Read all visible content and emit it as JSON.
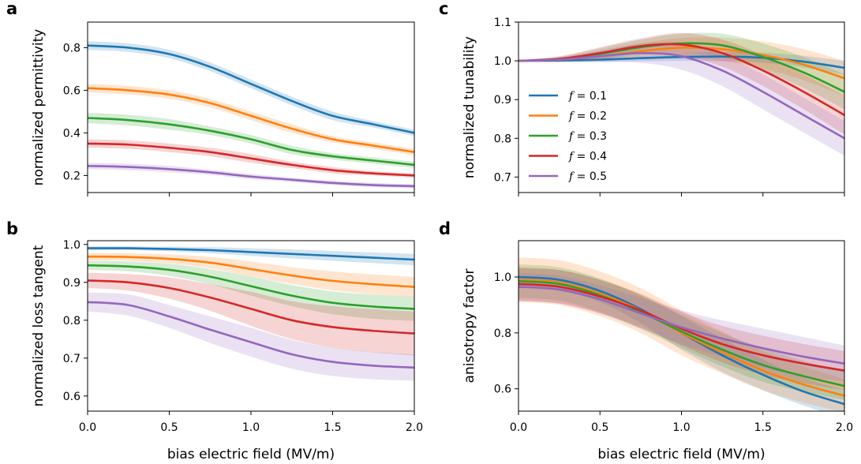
{
  "chart_data": [
    {
      "panel": "a",
      "type": "line",
      "xlabel": "",
      "ylabel": "normalized permittivity",
      "xlim": [
        0,
        2
      ],
      "ylim": [
        0.12,
        0.92
      ],
      "yticks": [
        0.2,
        0.4,
        0.6,
        0.8
      ],
      "ytick_labels": [
        "0.2",
        "0.4",
        "0.6",
        "0.8"
      ],
      "xticks": [
        0,
        0.5,
        1,
        1.5,
        2
      ],
      "xtick_labels": [],
      "grid": false,
      "x": [
        0.0,
        0.25,
        0.5,
        0.75,
        1.0,
        1.25,
        1.5,
        1.75,
        2.0
      ],
      "series": [
        {
          "color": "#1f77b4",
          "values": [
            0.81,
            0.8,
            0.77,
            0.71,
            0.63,
            0.55,
            0.48,
            0.44,
            0.4
          ],
          "band": [
            0.02,
            0.02,
            0.02,
            0.02,
            0.02,
            0.02,
            0.02,
            0.015,
            0.015
          ]
        },
        {
          "color": "#ff7f0e",
          "values": [
            0.61,
            0.6,
            0.58,
            0.54,
            0.48,
            0.42,
            0.37,
            0.34,
            0.31
          ],
          "band": [
            0.02,
            0.02,
            0.02,
            0.02,
            0.02,
            0.02,
            0.015,
            0.015,
            0.015
          ]
        },
        {
          "color": "#2ca02c",
          "values": [
            0.47,
            0.46,
            0.44,
            0.41,
            0.37,
            0.32,
            0.29,
            0.27,
            0.25
          ],
          "band": [
            0.025,
            0.025,
            0.025,
            0.02,
            0.02,
            0.02,
            0.015,
            0.015,
            0.015
          ]
        },
        {
          "color": "#d62728",
          "values": [
            0.35,
            0.345,
            0.33,
            0.31,
            0.28,
            0.25,
            0.225,
            0.21,
            0.2
          ],
          "band": [
            0.02,
            0.02,
            0.02,
            0.02,
            0.02,
            0.015,
            0.015,
            0.01,
            0.01
          ]
        },
        {
          "color": "#9467bd",
          "values": [
            0.245,
            0.24,
            0.23,
            0.215,
            0.195,
            0.18,
            0.165,
            0.155,
            0.15
          ],
          "band": [
            0.015,
            0.015,
            0.015,
            0.012,
            0.012,
            0.01,
            0.01,
            0.01,
            0.01
          ]
        }
      ]
    },
    {
      "panel": "b",
      "type": "line",
      "xlabel": "bias electric field (MV/m)",
      "ylabel": "normalized loss tangent",
      "xlim": [
        0,
        2
      ],
      "ylim": [
        0.56,
        1.01
      ],
      "yticks": [
        0.6,
        0.7,
        0.8,
        0.9,
        1.0
      ],
      "ytick_labels": [
        "0.6",
        "0.7",
        "0.8",
        "0.9",
        "1.0"
      ],
      "xticks": [
        0,
        0.5,
        1,
        1.5,
        2
      ],
      "xtick_labels": [
        "0.0",
        "0.5",
        "1.0",
        "1.5",
        "2.0"
      ],
      "grid": false,
      "x": [
        0.0,
        0.25,
        0.5,
        0.75,
        1.0,
        1.25,
        1.5,
        1.75,
        2.0
      ],
      "series": [
        {
          "color": "#1f77b4",
          "values": [
            0.99,
            0.99,
            0.988,
            0.985,
            0.98,
            0.975,
            0.97,
            0.965,
            0.96
          ],
          "band": [
            0.005,
            0.005,
            0.006,
            0.008,
            0.01,
            0.012,
            0.013,
            0.014,
            0.015
          ]
        },
        {
          "color": "#ff7f0e",
          "values": [
            0.968,
            0.967,
            0.962,
            0.952,
            0.935,
            0.918,
            0.904,
            0.895,
            0.888
          ],
          "band": [
            0.01,
            0.01,
            0.012,
            0.015,
            0.02,
            0.022,
            0.025,
            0.026,
            0.027
          ]
        },
        {
          "color": "#2ca02c",
          "values": [
            0.945,
            0.942,
            0.933,
            0.915,
            0.89,
            0.865,
            0.846,
            0.836,
            0.83
          ],
          "band": [
            0.012,
            0.013,
            0.016,
            0.02,
            0.025,
            0.028,
            0.03,
            0.032,
            0.032
          ]
        },
        {
          "color": "#d62728",
          "values": [
            0.905,
            0.9,
            0.885,
            0.86,
            0.83,
            0.8,
            0.782,
            0.772,
            0.765
          ],
          "band": [
            0.02,
            0.022,
            0.028,
            0.035,
            0.045,
            0.05,
            0.055,
            0.057,
            0.058
          ]
        },
        {
          "color": "#9467bd",
          "values": [
            0.848,
            0.84,
            0.81,
            0.775,
            0.742,
            0.71,
            0.69,
            0.68,
            0.675
          ],
          "band": [
            0.025,
            0.028,
            0.03,
            0.035,
            0.038,
            0.038,
            0.037,
            0.036,
            0.035
          ]
        }
      ]
    },
    {
      "panel": "c",
      "type": "line",
      "xlabel": "",
      "ylabel": "normalized tunability",
      "xlim": [
        0,
        2
      ],
      "ylim": [
        0.66,
        1.1
      ],
      "yticks": [
        0.7,
        0.8,
        0.9,
        1.0,
        1.1
      ],
      "ytick_labels": [
        "0.7",
        "0.8",
        "0.9",
        "1.0",
        "1.1"
      ],
      "xticks": [
        0,
        0.5,
        1,
        1.5,
        2
      ],
      "xtick_labels": [],
      "grid": false,
      "legend": {
        "placement": "center-left",
        "entries": [
          "f = 0.1",
          "f = 0.2",
          "f = 0.3",
          "f = 0.4",
          "f = 0.5"
        ]
      },
      "x": [
        0.0,
        0.25,
        0.5,
        0.75,
        1.0,
        1.25,
        1.5,
        1.75,
        2.0
      ],
      "series": [
        {
          "name": "f = 0.1",
          "color": "#1f77b4",
          "values": [
            1.0,
            1.001,
            1.003,
            1.007,
            1.01,
            1.011,
            1.008,
            0.998,
            0.982
          ],
          "band": [
            0.002,
            0.003,
            0.006,
            0.008,
            0.01,
            0.012,
            0.013,
            0.015,
            0.018
          ]
        },
        {
          "name": "f = 0.2",
          "color": "#ff7f0e",
          "values": [
            1.0,
            1.003,
            1.012,
            1.025,
            1.034,
            1.03,
            1.015,
            0.99,
            0.955
          ],
          "band": [
            0.002,
            0.005,
            0.012,
            0.02,
            0.025,
            0.03,
            0.035,
            0.04,
            0.045
          ]
        },
        {
          "name": "f = 0.3",
          "color": "#2ca02c",
          "values": [
            1.0,
            1.004,
            1.018,
            1.035,
            1.045,
            1.04,
            1.01,
            0.97,
            0.92
          ],
          "band": [
            0.002,
            0.006,
            0.014,
            0.02,
            0.025,
            0.03,
            0.035,
            0.04,
            0.045
          ]
        },
        {
          "name": "f = 0.4",
          "color": "#d62728",
          "values": [
            1.0,
            1.005,
            1.02,
            1.038,
            1.042,
            1.02,
            0.975,
            0.92,
            0.86
          ],
          "band": [
            0.002,
            0.007,
            0.015,
            0.02,
            0.03,
            0.035,
            0.04,
            0.045,
            0.05
          ]
        },
        {
          "name": "f = 0.5",
          "color": "#9467bd",
          "values": [
            1.0,
            1.003,
            1.012,
            1.02,
            1.012,
            0.975,
            0.92,
            0.86,
            0.8
          ],
          "band": [
            0.002,
            0.007,
            0.015,
            0.025,
            0.035,
            0.04,
            0.045,
            0.045,
            0.045
          ]
        }
      ]
    },
    {
      "panel": "d",
      "type": "line",
      "xlabel": "bias electric field (MV/m)",
      "ylabel": "anisotropy factor",
      "xlim": [
        0,
        2
      ],
      "ylim": [
        0.52,
        1.13
      ],
      "yticks": [
        0.6,
        0.8,
        1.0
      ],
      "ytick_labels": [
        "0.6",
        "0.8",
        "1.0"
      ],
      "xticks": [
        0,
        0.5,
        1,
        1.5,
        2
      ],
      "xtick_labels": [
        "0.0",
        "0.5",
        "1.0",
        "1.5",
        "2.0"
      ],
      "grid": false,
      "x": [
        0.0,
        0.25,
        0.5,
        0.75,
        1.0,
        1.25,
        1.5,
        1.75,
        2.0
      ],
      "series": [
        {
          "color": "#1f77b4",
          "values": [
            1.0,
            0.99,
            0.95,
            0.885,
            0.8,
            0.72,
            0.65,
            0.59,
            0.545
          ],
          "band": [
            0.03,
            0.035,
            0.04,
            0.05,
            0.06,
            0.06,
            0.055,
            0.05,
            0.05
          ]
        },
        {
          "color": "#ff7f0e",
          "values": [
            0.99,
            0.98,
            0.94,
            0.88,
            0.8,
            0.73,
            0.665,
            0.615,
            0.575
          ],
          "band": [
            0.08,
            0.08,
            0.08,
            0.08,
            0.08,
            0.075,
            0.07,
            0.065,
            0.06
          ]
        },
        {
          "color": "#2ca02c",
          "values": [
            0.985,
            0.975,
            0.935,
            0.875,
            0.805,
            0.74,
            0.685,
            0.645,
            0.61
          ],
          "band": [
            0.06,
            0.06,
            0.06,
            0.06,
            0.06,
            0.06,
            0.06,
            0.055,
            0.05
          ]
        },
        {
          "color": "#d62728",
          "values": [
            0.975,
            0.965,
            0.93,
            0.88,
            0.815,
            0.76,
            0.72,
            0.69,
            0.665
          ],
          "band": [
            0.06,
            0.06,
            0.06,
            0.06,
            0.06,
            0.065,
            0.07,
            0.07,
            0.07
          ]
        },
        {
          "color": "#9467bd",
          "values": [
            0.965,
            0.955,
            0.92,
            0.87,
            0.82,
            0.78,
            0.745,
            0.715,
            0.69
          ],
          "band": [
            0.05,
            0.05,
            0.05,
            0.055,
            0.06,
            0.065,
            0.07,
            0.07,
            0.065
          ]
        }
      ]
    }
  ]
}
